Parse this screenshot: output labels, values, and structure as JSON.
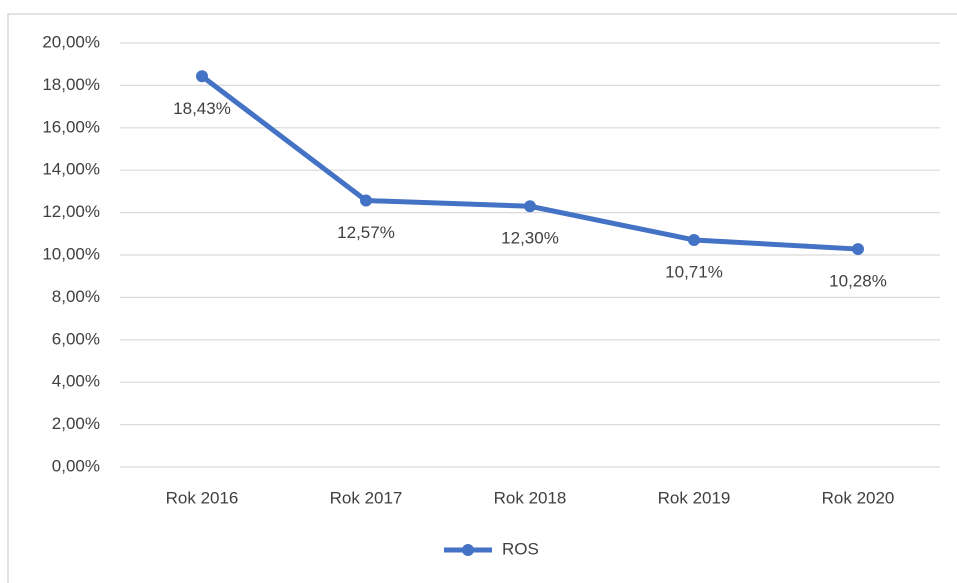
{
  "chart_data": {
    "type": "line",
    "categories": [
      "Rok 2016",
      "Rok 2017",
      "Rok 2018",
      "Rok 2019",
      "Rok 2020"
    ],
    "series": [
      {
        "name": "ROS",
        "color": "#4472c4",
        "values": [
          18.43,
          12.57,
          12.3,
          10.71,
          10.28
        ],
        "value_labels": [
          "18,43%",
          "12,57%",
          "12,30%",
          "10,71%",
          "10,28%"
        ]
      }
    ],
    "ylim": [
      0,
      20
    ],
    "yticks": [
      {
        "value": 0,
        "label": "0,00%"
      },
      {
        "value": 2,
        "label": "2,00%"
      },
      {
        "value": 4,
        "label": "4,00%"
      },
      {
        "value": 6,
        "label": "6,00%"
      },
      {
        "value": 8,
        "label": "8,00%"
      },
      {
        "value": 10,
        "label": "10,00%"
      },
      {
        "value": 12,
        "label": "12,00%"
      },
      {
        "value": 14,
        "label": "14,00%"
      },
      {
        "value": 16,
        "label": "16,00%"
      },
      {
        "value": 18,
        "label": "18,00%"
      },
      {
        "value": 20,
        "label": "20,00%"
      }
    ],
    "grid": true,
    "legend": "bottom"
  }
}
